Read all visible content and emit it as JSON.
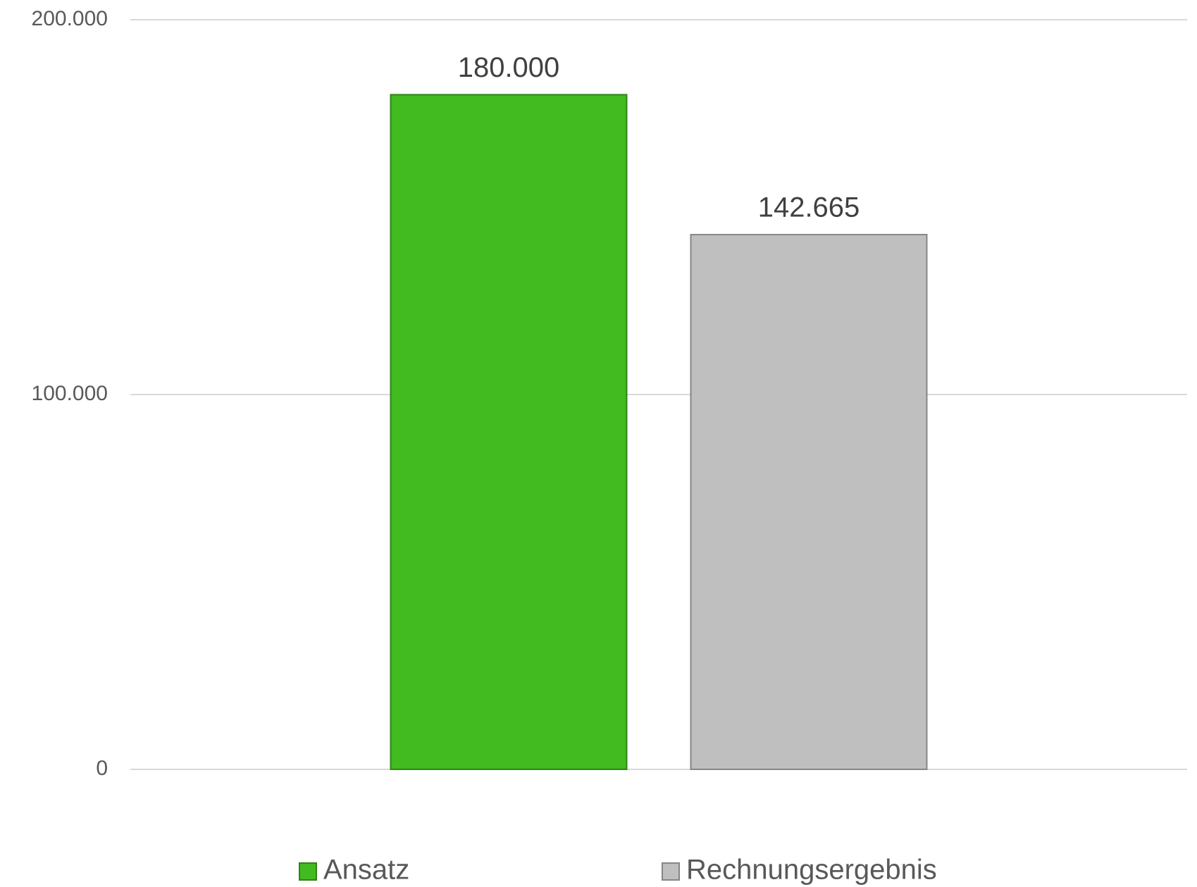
{
  "chart_data": {
    "type": "bar",
    "categories": [
      null
    ],
    "series": [
      {
        "name": "Ansatz",
        "color": "#41bb1f",
        "values": [
          180000
        ],
        "value_labels": [
          "180.000"
        ]
      },
      {
        "name": "Rechnungsergebnis",
        "color": "#bfbfbf",
        "values": [
          142665
        ],
        "value_labels": [
          "142.665"
        ]
      }
    ],
    "ylim": [
      0,
      200000
    ],
    "yticks": [
      0,
      {
        "value": 100000,
        "label": "100.000"
      },
      {
        "value": 200000,
        "label": "200.000"
      }
    ],
    "grid": true,
    "legend": "bottom"
  }
}
